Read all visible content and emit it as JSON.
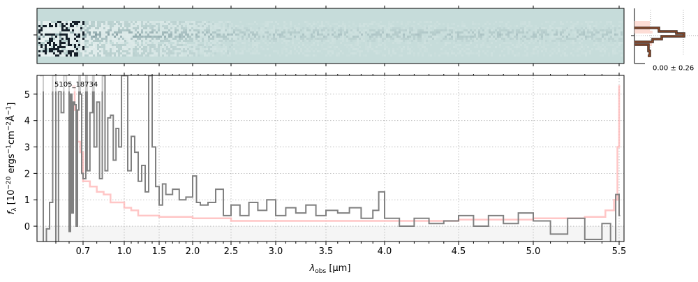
{
  "chart_data": [
    {
      "type": "line",
      "panel": "main-spectrum",
      "xlabel": "λobs [μm]",
      "xlabel_main": "λ",
      "xlabel_sub": "obs",
      "xlabel_unit": " [μm]",
      "ylabel": "fλ [10−20 ergs−1cm−2Å−1]",
      "ylabel_parts": {
        "f": "f",
        "f_sub": "λ",
        "open": " [10",
        "exp1": "−20",
        "mid1": " ergs",
        "exp2": "−1",
        "mid2": "cm",
        "exp3": "−2",
        "mid3": "Å",
        "exp4": "−1",
        "close": "]"
      },
      "annotation": "5105_18734",
      "xlim": [
        0.38,
        5.52
      ],
      "ylim": [
        -0.58,
        5.71
      ],
      "x_scale": "nonlinear (custom, compressed at short wavelengths)",
      "x_ticks": [
        0.7,
        1.0,
        1.5,
        2.0,
        2.5,
        3.0,
        3.5,
        4.0,
        4.5,
        5.0,
        5.5
      ],
      "x_tick_labels": [
        "0.7",
        "1.0",
        "1.5",
        "2.0",
        "2.5",
        "3.0",
        "3.5",
        "4.0",
        "4.5",
        "5.0",
        "5.5"
      ],
      "y_ticks": [
        0,
        1,
        2,
        3,
        4,
        5
      ],
      "y_tick_labels": [
        "0",
        "1",
        "2",
        "3",
        "4",
        "5"
      ],
      "grid": true,
      "series": [
        {
          "role": "flux",
          "color": "#808080",
          "x": [
            0.4,
            0.42,
            0.44,
            0.46,
            0.48,
            0.5,
            0.52,
            0.54,
            0.56,
            0.58,
            0.6,
            0.61,
            0.62,
            0.63,
            0.64,
            0.65,
            0.66,
            0.67,
            0.68,
            0.69,
            0.7,
            0.72,
            0.73,
            0.75,
            0.77,
            0.78,
            0.8,
            0.82,
            0.84,
            0.86,
            0.88,
            0.9,
            0.92,
            0.94,
            0.96,
            0.98,
            1.0,
            1.05,
            1.1,
            1.15,
            1.2,
            1.25,
            1.3,
            1.35,
            1.4,
            1.45,
            1.5,
            1.55,
            1.6,
            1.7,
            1.8,
            1.9,
            2.0,
            2.05,
            2.1,
            2.2,
            2.3,
            2.4,
            2.5,
            2.6,
            2.7,
            2.8,
            2.9,
            3.0,
            3.1,
            3.2,
            3.3,
            3.4,
            3.5,
            3.6,
            3.7,
            3.8,
            3.9,
            3.95,
            4.0,
            4.1,
            4.2,
            4.3,
            4.4,
            4.5,
            4.6,
            4.7,
            4.8,
            4.9,
            5.0,
            5.1,
            5.2,
            5.3,
            5.4,
            5.45,
            5.48,
            5.5
          ],
          "y": [
            5.7,
            -0.6,
            -0.1,
            0.9,
            5.7,
            -0.6,
            5.1,
            4.3,
            5.7,
            5.4,
            -0.2,
            5.0,
            0.5,
            4.7,
            4.6,
            0.0,
            4.4,
            5.7,
            5.0,
            2.0,
            1.8,
            5.7,
            2.1,
            4.3,
            5.7,
            3.0,
            4.7,
            1.8,
            5.7,
            2.1,
            4.1,
            4.2,
            2.5,
            3.7,
            3.0,
            5.7,
            5.7,
            2.1,
            3.4,
            2.8,
            1.7,
            2.3,
            1.3,
            5.7,
            3.0,
            1.5,
            0.8,
            1.6,
            1.2,
            1.4,
            1.0,
            1.1,
            1.9,
            0.9,
            0.8,
            0.9,
            1.4,
            0.4,
            0.8,
            0.4,
            0.9,
            0.6,
            1.0,
            0.4,
            0.7,
            0.5,
            0.8,
            0.4,
            0.6,
            0.5,
            0.7,
            0.3,
            0.6,
            1.3,
            0.3,
            0.0,
            0.3,
            0.1,
            0.2,
            0.4,
            0.0,
            0.4,
            0.1,
            0.5,
            0.2,
            -0.3,
            0.3,
            -0.5,
            0.1,
            -0.6,
            1.2,
            0.4
          ]
        },
        {
          "role": "error",
          "color": "#ffb3b3",
          "x": [
            0.62,
            0.64,
            0.66,
            0.68,
            0.7,
            0.75,
            0.8,
            0.85,
            0.9,
            0.95,
            1.0,
            1.1,
            1.2,
            1.5,
            2.0,
            2.5,
            3.0,
            3.5,
            4.0,
            4.5,
            5.0,
            5.3,
            5.42,
            5.47,
            5.49,
            5.5
          ],
          "y": [
            5.3,
            4.4,
            3.2,
            2.8,
            1.7,
            1.5,
            1.3,
            1.2,
            0.9,
            0.9,
            0.7,
            0.6,
            0.4,
            0.35,
            0.3,
            0.2,
            0.2,
            0.2,
            0.2,
            0.25,
            0.3,
            0.35,
            0.6,
            1.0,
            3.0,
            5.3
          ]
        }
      ]
    },
    {
      "type": "heatmap",
      "panel": "2d-spectrum",
      "colormap_background": "#c6dcda",
      "colormap_dark": "#1a2430"
    },
    {
      "type": "histogram",
      "panel": "profile",
      "annotation": "0.00 ± 0.26",
      "line_color": "#6b3a2a",
      "fill_color": "#fcd5cc"
    }
  ]
}
